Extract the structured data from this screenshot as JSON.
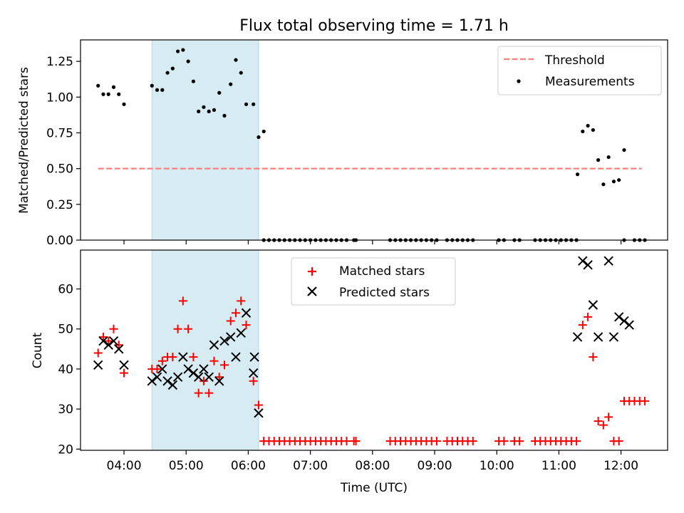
{
  "chart_data": [
    {
      "type": "scatter",
      "title": "Flux total observing time = 1.71 h",
      "xlabel": "",
      "ylabel": "Matched/Predicted stars",
      "ylim": [
        0,
        1.4
      ],
      "xlim": [
        "03:18",
        "12:45"
      ],
      "yticks": [
        "0.00",
        "0.25",
        "0.50",
        "0.75",
        "1.00",
        "1.25"
      ],
      "legend_position": "top-right",
      "shaded_interval": [
        "04:27",
        "06:10"
      ],
      "threshold": {
        "name": "Threshold",
        "value": 0.5,
        "x_range": [
          "03:35",
          "12:20"
        ],
        "color": "#ff7f7f"
      },
      "series": [
        {
          "name": "Measurements",
          "color": "#000000",
          "points": [
            [
              "03:35",
              1.08
            ],
            [
              "03:40",
              1.02
            ],
            [
              "03:45",
              1.02
            ],
            [
              "03:50",
              1.07
            ],
            [
              "03:55",
              1.02
            ],
            [
              "04:00",
              0.95
            ],
            [
              "04:27",
              1.08
            ],
            [
              "04:32",
              1.05
            ],
            [
              "04:37",
              1.05
            ],
            [
              "04:42",
              1.17
            ],
            [
              "04:47",
              1.2
            ],
            [
              "04:52",
              1.32
            ],
            [
              "04:57",
              1.33
            ],
            [
              "05:02",
              1.25
            ],
            [
              "05:07",
              1.11
            ],
            [
              "05:12",
              0.9
            ],
            [
              "05:17",
              0.93
            ],
            [
              "05:22",
              0.9
            ],
            [
              "05:27",
              0.91
            ],
            [
              "05:32",
              1.03
            ],
            [
              "05:37",
              0.87
            ],
            [
              "05:43",
              1.09
            ],
            [
              "05:48",
              1.26
            ],
            [
              "05:53",
              1.17
            ],
            [
              "05:58",
              0.95
            ],
            [
              "06:05",
              0.95
            ],
            [
              "06:10",
              0.72
            ],
            [
              "06:15",
              0.76
            ],
            [
              "06:15",
              0.0
            ],
            [
              "06:20",
              0.0
            ],
            [
              "06:25",
              0.0
            ],
            [
              "06:30",
              0.0
            ],
            [
              "06:35",
              0.0
            ],
            [
              "06:40",
              0.0
            ],
            [
              "06:45",
              0.0
            ],
            [
              "06:50",
              0.0
            ],
            [
              "06:55",
              0.0
            ],
            [
              "07:00",
              0.0
            ],
            [
              "07:05",
              0.0
            ],
            [
              "07:10",
              0.0
            ],
            [
              "07:15",
              0.0
            ],
            [
              "07:20",
              0.0
            ],
            [
              "07:25",
              0.0
            ],
            [
              "07:30",
              0.0
            ],
            [
              "07:35",
              0.0
            ],
            [
              "07:42",
              0.0
            ],
            [
              "07:44",
              0.0
            ],
            [
              "08:17",
              0.0
            ],
            [
              "08:22",
              0.0
            ],
            [
              "08:27",
              0.0
            ],
            [
              "08:32",
              0.0
            ],
            [
              "08:37",
              0.0
            ],
            [
              "08:42",
              0.0
            ],
            [
              "08:47",
              0.0
            ],
            [
              "08:52",
              0.0
            ],
            [
              "08:57",
              0.0
            ],
            [
              "09:02",
              0.0
            ],
            [
              "09:12",
              0.0
            ],
            [
              "09:17",
              0.0
            ],
            [
              "09:22",
              0.0
            ],
            [
              "09:27",
              0.0
            ],
            [
              "09:32",
              0.0
            ],
            [
              "09:37",
              0.0
            ],
            [
              "10:02",
              0.0
            ],
            [
              "10:07",
              0.0
            ],
            [
              "10:17",
              0.0
            ],
            [
              "10:22",
              0.0
            ],
            [
              "10:37",
              0.0
            ],
            [
              "10:42",
              0.0
            ],
            [
              "10:47",
              0.0
            ],
            [
              "10:52",
              0.0
            ],
            [
              "10:57",
              0.0
            ],
            [
              "11:02",
              0.0
            ],
            [
              "11:07",
              0.0
            ],
            [
              "11:12",
              0.0
            ],
            [
              "11:17",
              0.0
            ],
            [
              "11:18",
              0.46
            ],
            [
              "11:23",
              0.76
            ],
            [
              "11:28",
              0.8
            ],
            [
              "11:33",
              0.77
            ],
            [
              "11:38",
              0.56
            ],
            [
              "11:43",
              0.39
            ],
            [
              "11:48",
              0.58
            ],
            [
              "11:53",
              0.41
            ],
            [
              "11:58",
              0.42
            ],
            [
              "12:03",
              0.63
            ],
            [
              "12:03",
              0.0
            ],
            [
              "12:13",
              0.0
            ],
            [
              "12:18",
              0.0
            ],
            [
              "12:23",
              0.0
            ]
          ]
        }
      ]
    },
    {
      "type": "scatter",
      "title": "",
      "xlabel": "Time (UTC)",
      "ylabel": "Count",
      "ylim": [
        19.7,
        69.7
      ],
      "xlim": [
        "03:18",
        "12:45"
      ],
      "yticks": [
        "20",
        "30",
        "40",
        "50",
        "60"
      ],
      "xticks": [
        "04:00",
        "05:00",
        "06:00",
        "07:00",
        "08:00",
        "09:00",
        "10:00",
        "11:00",
        "12:00"
      ],
      "legend_position": "upper-center",
      "shaded_interval": [
        "04:27",
        "06:10"
      ],
      "series": [
        {
          "name": "Matched stars",
          "color": "#ff0000",
          "marker": "plus",
          "points": [
            [
              "03:35",
              44
            ],
            [
              "03:40",
              48
            ],
            [
              "03:45",
              47
            ],
            [
              "03:50",
              50
            ],
            [
              "03:55",
              46
            ],
            [
              "04:00",
              39
            ],
            [
              "04:27",
              40
            ],
            [
              "04:32",
              40
            ],
            [
              "04:37",
              42
            ],
            [
              "04:42",
              43
            ],
            [
              "04:47",
              43
            ],
            [
              "04:52",
              50
            ],
            [
              "04:57",
              57
            ],
            [
              "05:02",
              50
            ],
            [
              "05:07",
              43
            ],
            [
              "05:12",
              34
            ],
            [
              "05:17",
              37
            ],
            [
              "05:22",
              34
            ],
            [
              "05:27",
              42
            ],
            [
              "05:32",
              38
            ],
            [
              "05:37",
              41
            ],
            [
              "05:43",
              52
            ],
            [
              "05:48",
              54
            ],
            [
              "05:53",
              57
            ],
            [
              "05:58",
              51
            ],
            [
              "06:05",
              37
            ],
            [
              "06:10",
              31
            ],
            [
              "06:15",
              22
            ],
            [
              "06:20",
              22
            ],
            [
              "06:25",
              22
            ],
            [
              "06:30",
              22
            ],
            [
              "06:35",
              22
            ],
            [
              "06:40",
              22
            ],
            [
              "06:45",
              22
            ],
            [
              "06:50",
              22
            ],
            [
              "06:55",
              22
            ],
            [
              "07:00",
              22
            ],
            [
              "07:05",
              22
            ],
            [
              "07:10",
              22
            ],
            [
              "07:15",
              22
            ],
            [
              "07:20",
              22
            ],
            [
              "07:25",
              22
            ],
            [
              "07:30",
              22
            ],
            [
              "07:35",
              22
            ],
            [
              "07:42",
              22
            ],
            [
              "07:44",
              22
            ],
            [
              "08:17",
              22
            ],
            [
              "08:22",
              22
            ],
            [
              "08:27",
              22
            ],
            [
              "08:32",
              22
            ],
            [
              "08:37",
              22
            ],
            [
              "08:42",
              22
            ],
            [
              "08:47",
              22
            ],
            [
              "08:52",
              22
            ],
            [
              "08:57",
              22
            ],
            [
              "09:02",
              22
            ],
            [
              "09:12",
              22
            ],
            [
              "09:17",
              22
            ],
            [
              "09:22",
              22
            ],
            [
              "09:27",
              22
            ],
            [
              "09:32",
              22
            ],
            [
              "09:37",
              22
            ],
            [
              "10:02",
              22
            ],
            [
              "10:07",
              22
            ],
            [
              "10:17",
              22
            ],
            [
              "10:22",
              22
            ],
            [
              "10:37",
              22
            ],
            [
              "10:42",
              22
            ],
            [
              "10:47",
              22
            ],
            [
              "10:52",
              22
            ],
            [
              "10:57",
              22
            ],
            [
              "11:02",
              22
            ],
            [
              "11:07",
              22
            ],
            [
              "11:12",
              22
            ],
            [
              "11:17",
              22
            ],
            [
              "11:23",
              51
            ],
            [
              "11:28",
              53
            ],
            [
              "11:33",
              43
            ],
            [
              "11:38",
              27
            ],
            [
              "11:43",
              26
            ],
            [
              "11:48",
              28
            ],
            [
              "11:53",
              22
            ],
            [
              "11:58",
              22
            ],
            [
              "12:03",
              32
            ],
            [
              "12:08",
              32
            ],
            [
              "12:13",
              32
            ],
            [
              "12:18",
              32
            ],
            [
              "12:23",
              32
            ]
          ]
        },
        {
          "name": "Predicted stars",
          "color": "#000000",
          "marker": "x",
          "points": [
            [
              "03:35",
              41
            ],
            [
              "03:40",
              47
            ],
            [
              "03:45",
              46
            ],
            [
              "03:50",
              47
            ],
            [
              "03:55",
              45
            ],
            [
              "04:00",
              41
            ],
            [
              "04:27",
              37
            ],
            [
              "04:32",
              38
            ],
            [
              "04:37",
              40
            ],
            [
              "04:42",
              37
            ],
            [
              "04:47",
              36
            ],
            [
              "04:52",
              38
            ],
            [
              "04:57",
              43
            ],
            [
              "05:02",
              40
            ],
            [
              "05:07",
              39
            ],
            [
              "05:12",
              38
            ],
            [
              "05:17",
              40
            ],
            [
              "05:22",
              38
            ],
            [
              "05:27",
              46
            ],
            [
              "05:32",
              37
            ],
            [
              "05:37",
              47
            ],
            [
              "05:43",
              48
            ],
            [
              "05:48",
              43
            ],
            [
              "05:53",
              49
            ],
            [
              "05:58",
              54
            ],
            [
              "06:05",
              39
            ],
            [
              "06:06",
              43
            ],
            [
              "06:10",
              29
            ],
            [
              "11:18",
              48
            ],
            [
              "11:23",
              67
            ],
            [
              "11:28",
              66
            ],
            [
              "11:33",
              56
            ],
            [
              "11:38",
              48
            ],
            [
              "11:48",
              67
            ],
            [
              "11:53",
              48
            ],
            [
              "11:58",
              53
            ],
            [
              "12:03",
              52
            ],
            [
              "12:08",
              51
            ]
          ]
        }
      ]
    }
  ]
}
